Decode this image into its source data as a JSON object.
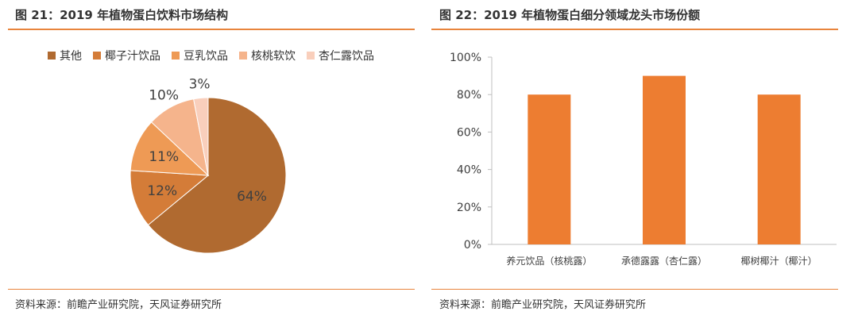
{
  "charts": [
    {
      "title": "图 21：2019 年植物蛋白饮料市场结构",
      "source": "资料来源：前瞻产业研究院，天风证券研究所"
    },
    {
      "title": "图 22：2019 年植物蛋白细分领域龙头市场份额",
      "source": "资料来源：前瞻产业研究院，天风证券研究所"
    }
  ],
  "chart_data": [
    {
      "type": "pie",
      "title": "图 21：2019 年植物蛋白饮料市场结构",
      "legend_position": "top",
      "slices": [
        {
          "label": "其他",
          "value": 64,
          "display": "64%",
          "color": "#b06a30"
        },
        {
          "label": "椰子汁饮品",
          "value": 12,
          "display": "12%",
          "color": "#d47c38"
        },
        {
          "label": "豆乳饮品",
          "value": 11,
          "display": "11%",
          "color": "#ee9a55"
        },
        {
          "label": "核桃软饮",
          "value": 10,
          "display": "10%",
          "color": "#f5b48c"
        },
        {
          "label": "杏仁露饮品",
          "value": 3,
          "display": "3%",
          "color": "#f9cfbc"
        }
      ]
    },
    {
      "type": "bar",
      "title": "图 22：2019 年植物蛋白细分领域龙头市场份额",
      "categories": [
        "养元饮品（核桃露）",
        "承德露露（杏仁露）",
        "椰树椰汁（椰汁）"
      ],
      "values": [
        80,
        90,
        80
      ],
      "ylim": [
        0,
        100
      ],
      "yticks": [
        "0%",
        "20%",
        "40%",
        "60%",
        "80%",
        "100%"
      ],
      "color": "#ed7d31",
      "grid": false
    }
  ]
}
